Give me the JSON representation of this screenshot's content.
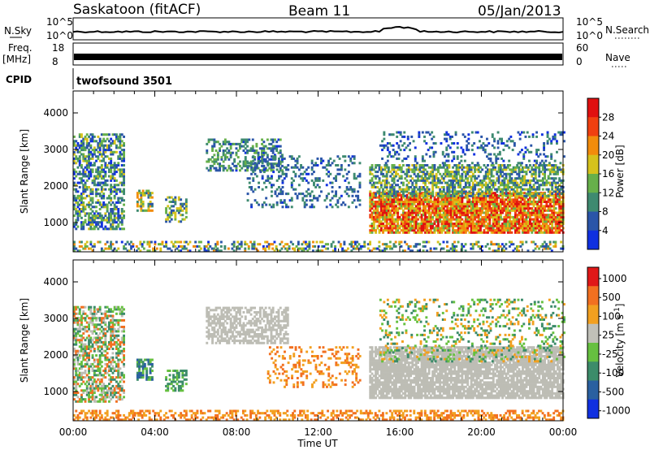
{
  "header": {
    "site": "Saskatoon (fitACF)",
    "beam": "Beam 11",
    "date": "05/Jan/2013"
  },
  "strip_labels": {
    "nsky": "N.Sky",
    "nsky_hi": "10^5",
    "nsky_lo": "10^0",
    "nsearch": "N.Search",
    "nsearch_hi": "10^5",
    "nsearch_lo": "10^0",
    "freq": "Freq.",
    "freq_unit": "[MHz]",
    "freq_hi": "18",
    "freq_lo": "8",
    "nave": "Nave",
    "nave_hi": "60",
    "nave_lo": "0",
    "cpid": "CPID",
    "cpid_value": "twofsound 3501"
  },
  "chart_data": [
    {
      "type": "heatmap",
      "name": "power",
      "ylabel": "Slant Range [km]",
      "yticks": [
        "1000",
        "2000",
        "3000",
        "4000"
      ],
      "ylim": [
        200,
        4600
      ],
      "xlim": [
        0,
        24
      ],
      "colorbar_label": "Power [dB]",
      "colorbar_ticks": [
        "4",
        "8",
        "12",
        "16",
        "20",
        "24",
        "28"
      ],
      "colorbar_range": [
        0,
        32
      ],
      "colors": [
        "#1030e0",
        "#2a55a8",
        "#3e8a70",
        "#67b04a",
        "#d6c21c",
        "#f28c0c",
        "#f04010",
        "#e01010"
      ],
      "regions": [
        {
          "t0": 0.0,
          "t1": 2.5,
          "r0": 800,
          "r1": 3400,
          "vmin": 2,
          "vmax": 18,
          "density": 0.55
        },
        {
          "t0": 3.1,
          "t1": 3.9,
          "r0": 1300,
          "r1": 1900,
          "vmin": 6,
          "vmax": 24,
          "density": 0.6
        },
        {
          "t0": 4.5,
          "t1": 5.5,
          "r0": 1000,
          "r1": 1700,
          "vmin": 4,
          "vmax": 20,
          "density": 0.5
        },
        {
          "t0": 6.5,
          "t1": 10.2,
          "r0": 2400,
          "r1": 3300,
          "vmin": 3,
          "vmax": 16,
          "density": 0.45
        },
        {
          "t0": 8.5,
          "t1": 14.0,
          "r0": 1400,
          "r1": 2800,
          "vmin": 3,
          "vmax": 12,
          "density": 0.22
        },
        {
          "t0": 14.5,
          "t1": 24.0,
          "r0": 700,
          "r1": 1800,
          "vmin": 14,
          "vmax": 32,
          "density": 0.85
        },
        {
          "t0": 14.5,
          "t1": 24.0,
          "r0": 1700,
          "r1": 2600,
          "vmin": 4,
          "vmax": 20,
          "density": 0.6
        },
        {
          "t0": 15.0,
          "t1": 24.0,
          "r0": 2600,
          "r1": 3500,
          "vmin": 2,
          "vmax": 12,
          "density": 0.2
        },
        {
          "t0": 0.0,
          "t1": 24.0,
          "r0": 200,
          "r1": 500,
          "vmin": 2,
          "vmax": 24,
          "density": 0.35
        }
      ]
    },
    {
      "type": "heatmap",
      "name": "velocity",
      "ylabel": "Slant Range [km]",
      "yticks": [
        "1000",
        "2000",
        "3000",
        "4000"
      ],
      "ylim": [
        200,
        4600
      ],
      "xlim": [
        0,
        24
      ],
      "xlabel": "Time UT",
      "xticks": [
        "00:00",
        "04:00",
        "08:00",
        "12:00",
        "16:00",
        "20:00",
        "00:00"
      ],
      "colorbar_label": "Velocity [m s^-1]",
      "colorbar_ticks": [
        "1000",
        "500",
        "100",
        "25",
        "-25",
        "-100",
        "-500",
        "-1000"
      ],
      "colors": [
        "#1030e0",
        "#2a60a0",
        "#3c8c6a",
        "#66c040",
        "#c0c0b8",
        "#f2a020",
        "#f27020",
        "#e01818"
      ],
      "ground_scatter_color": "#bdbdb5",
      "regions": [
        {
          "t0": 0.0,
          "t1": 2.5,
          "r0": 700,
          "r1": 3300,
          "cls": [
            2,
            3,
            4,
            6
          ],
          "density": 0.55
        },
        {
          "t0": 3.1,
          "t1": 3.9,
          "r0": 1300,
          "r1": 1900,
          "cls": [
            1,
            2,
            3
          ],
          "density": 0.6
        },
        {
          "t0": 4.5,
          "t1": 5.5,
          "r0": 1000,
          "r1": 1600,
          "cls": [
            2,
            3
          ],
          "density": 0.5
        },
        {
          "t0": 6.5,
          "t1": 10.5,
          "r0": 2300,
          "r1": 3300,
          "cls": [
            4
          ],
          "density": 0.6
        },
        {
          "t0": 9.5,
          "t1": 14.0,
          "r0": 1100,
          "r1": 2200,
          "cls": [
            5,
            6
          ],
          "density": 0.2
        },
        {
          "t0": 14.5,
          "t1": 24.0,
          "r0": 800,
          "r1": 2200,
          "cls": [
            4
          ],
          "density": 0.85
        },
        {
          "t0": 15.0,
          "t1": 24.0,
          "r0": 1800,
          "r1": 3500,
          "cls": [
            2,
            3,
            5
          ],
          "density": 0.2
        },
        {
          "t0": 0.0,
          "t1": 24.0,
          "r0": 200,
          "r1": 500,
          "cls": [
            5,
            6
          ],
          "density": 0.45
        }
      ]
    }
  ]
}
